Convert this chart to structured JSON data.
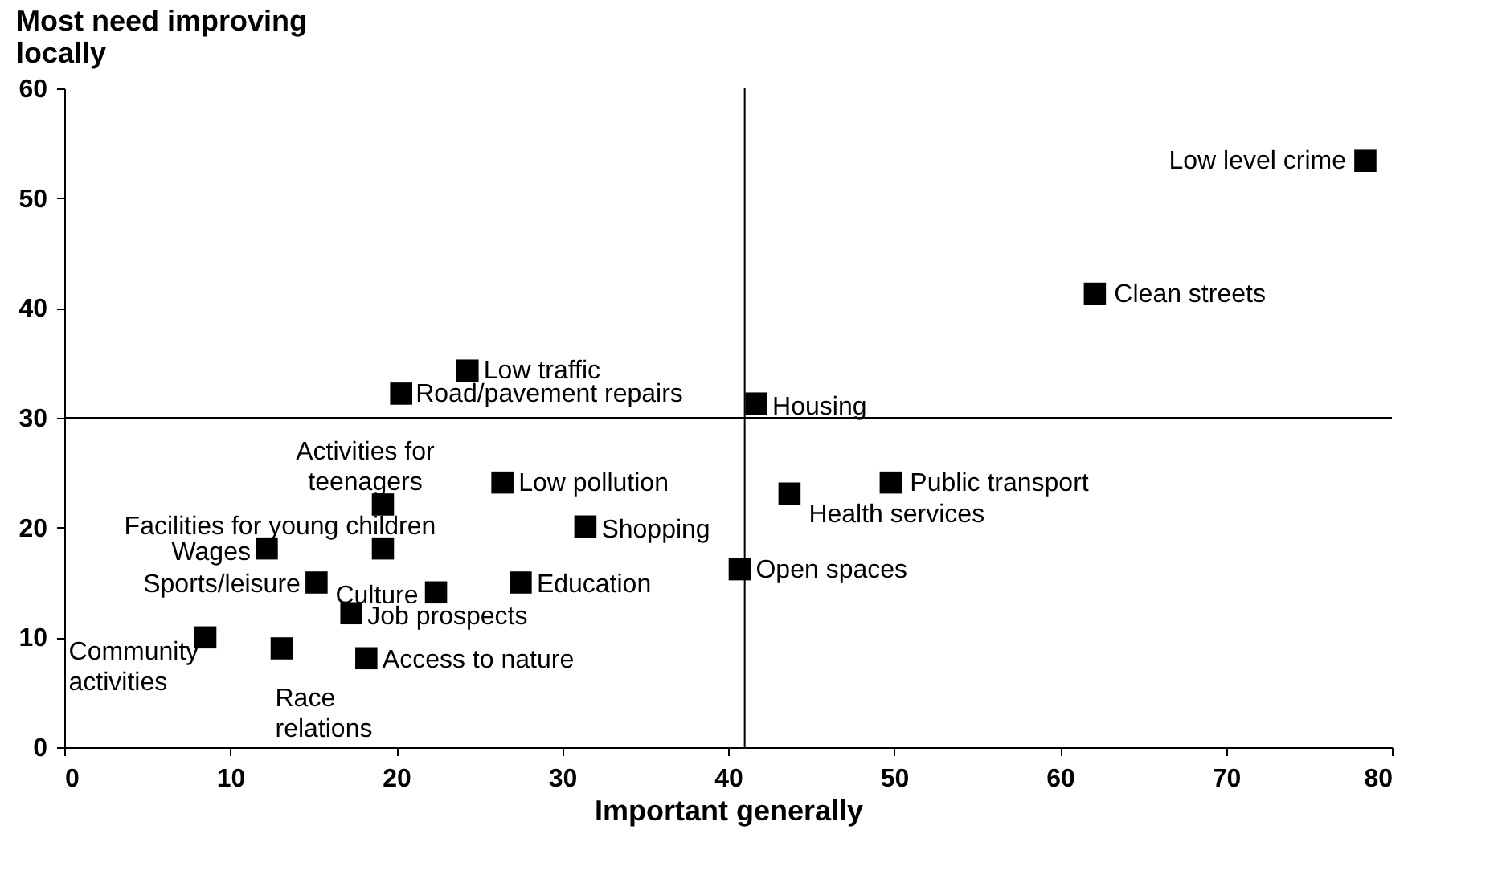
{
  "chart_data": {
    "type": "scatter",
    "ylabel": "Most need improving locally",
    "xlabel": "Important generally",
    "xlim": [
      0,
      80
    ],
    "xticks": [
      0,
      10,
      20,
      30,
      40,
      50,
      60,
      70,
      80
    ],
    "ylim": [
      0,
      60
    ],
    "yticks": [
      0,
      10,
      20,
      30,
      40,
      50,
      60
    ],
    "marker": "square",
    "grid": false,
    "series": [
      {
        "color": "#000000",
        "x": [
          78.4,
          62.1,
          24.3,
          20.3,
          41.7,
          26.4,
          49.8,
          43.7,
          19.2,
          31.4,
          19.2,
          12.2,
          40.7,
          15.2,
          27.5,
          22.4,
          17.3,
          8.5,
          13.1,
          18.2
        ],
        "values": [
          53.4,
          41.3,
          34.3,
          32.2,
          31.3,
          24.1,
          24.1,
          23.1,
          22.1,
          20.1,
          18.1,
          18.1,
          16.2,
          15.0,
          15.0,
          14.1,
          12.2,
          10.0,
          9.0,
          8.1
        ]
      }
    ],
    "ref_lines": [
      {
        "axis": "x",
        "value": 41,
        "color": "#000000"
      },
      {
        "axis": "y",
        "value": 30,
        "color": "#000000"
      }
    ],
    "annotations": [
      {
        "text": "Low level crime",
        "x": 78.4,
        "y": 53.4
      },
      {
        "text": "Clean streets",
        "x": 62.1,
        "y": 41.3
      },
      {
        "text": "Low traffic",
        "x": 24.3,
        "y": 34.3
      },
      {
        "text": "Road/pavement repairs",
        "x": 20.3,
        "y": 32.2
      },
      {
        "text": "Housing",
        "x": 41.7,
        "y": 31.3
      },
      {
        "text": "Low pollution",
        "x": 26.4,
        "y": 24.1
      },
      {
        "text": "Public transport",
        "x": 49.8,
        "y": 24.1
      },
      {
        "text": "Health services",
        "x": 43.7,
        "y": 23.1
      },
      {
        "text": "Activities for teenagers",
        "x": 19.2,
        "y": 22.1
      },
      {
        "text": "Shopping",
        "x": 31.4,
        "y": 20.1
      },
      {
        "text": "Facilities for young children",
        "x": 19.2,
        "y": 18.1
      },
      {
        "text": "Wages",
        "x": 12.2,
        "y": 18.1
      },
      {
        "text": "Open spaces",
        "x": 40.7,
        "y": 16.2
      },
      {
        "text": "Sports/leisure",
        "x": 15.2,
        "y": 15.0
      },
      {
        "text": "Education",
        "x": 27.5,
        "y": 15.0
      },
      {
        "text": "Culture",
        "x": 22.4,
        "y": 14.1
      },
      {
        "text": "Job prospects",
        "x": 17.3,
        "y": 12.2
      },
      {
        "text": "Community activities",
        "x": 8.5,
        "y": 10.0
      },
      {
        "text": "Race relations",
        "x": 13.1,
        "y": 9.0
      },
      {
        "text": "Access to nature",
        "x": 18.2,
        "y": 8.1
      }
    ]
  }
}
